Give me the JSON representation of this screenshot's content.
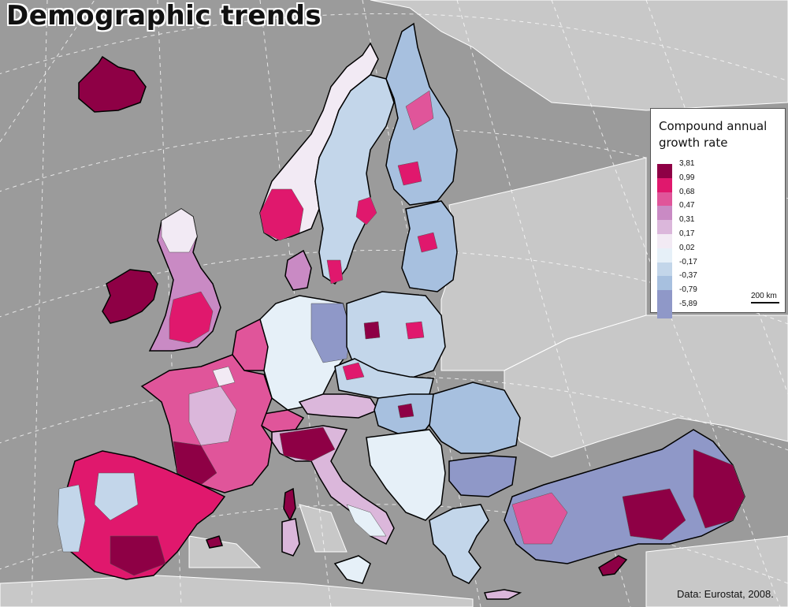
{
  "title": "Demographic trends",
  "source": "Data: Eurostat, 2008.",
  "legend": {
    "title_line1": "Compound annual",
    "title_line2": "growth rate",
    "classes": [
      {
        "label": "3,81",
        "color": "#8e0045"
      },
      {
        "label": "0,99",
        "color": "#e0186d"
      },
      {
        "label": "0,68",
        "color": "#e0559a"
      },
      {
        "label": "0,47",
        "color": "#c98ac4"
      },
      {
        "label": "0,31",
        "color": "#dbb7db"
      },
      {
        "label": "0,17",
        "color": "#f2eaf4"
      },
      {
        "label": "0,02",
        "color": "#e6f0f8"
      },
      {
        "label": "-0,17",
        "color": "#c3d6ea"
      },
      {
        "label": "-0,37",
        "color": "#a7c0df"
      },
      {
        "label": "-0,79",
        "color": "#8f98c8"
      },
      {
        "label": "-5,89",
        "color": ""
      }
    ]
  },
  "scale_bar": "200 km",
  "colors": {
    "sea": "#9b9b9b",
    "non_eu_land": "#c8c8c8",
    "graticule": "#ffffff"
  }
}
